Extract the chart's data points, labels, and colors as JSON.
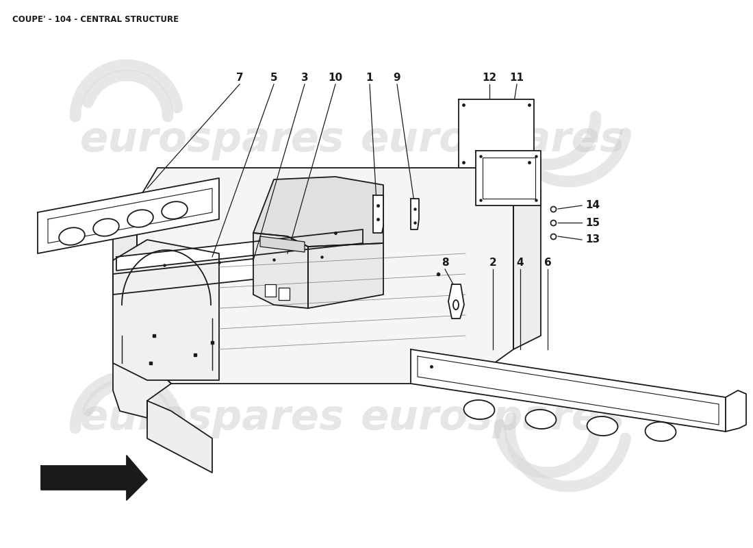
{
  "title": "COUPE' - 104 - CENTRAL STRUCTURE",
  "bg": "#ffffff",
  "lc": "#1a1a1a",
  "wm": "eurospares",
  "wm_color": "#cccccc",
  "fig_w": 11.0,
  "fig_h": 8.0
}
